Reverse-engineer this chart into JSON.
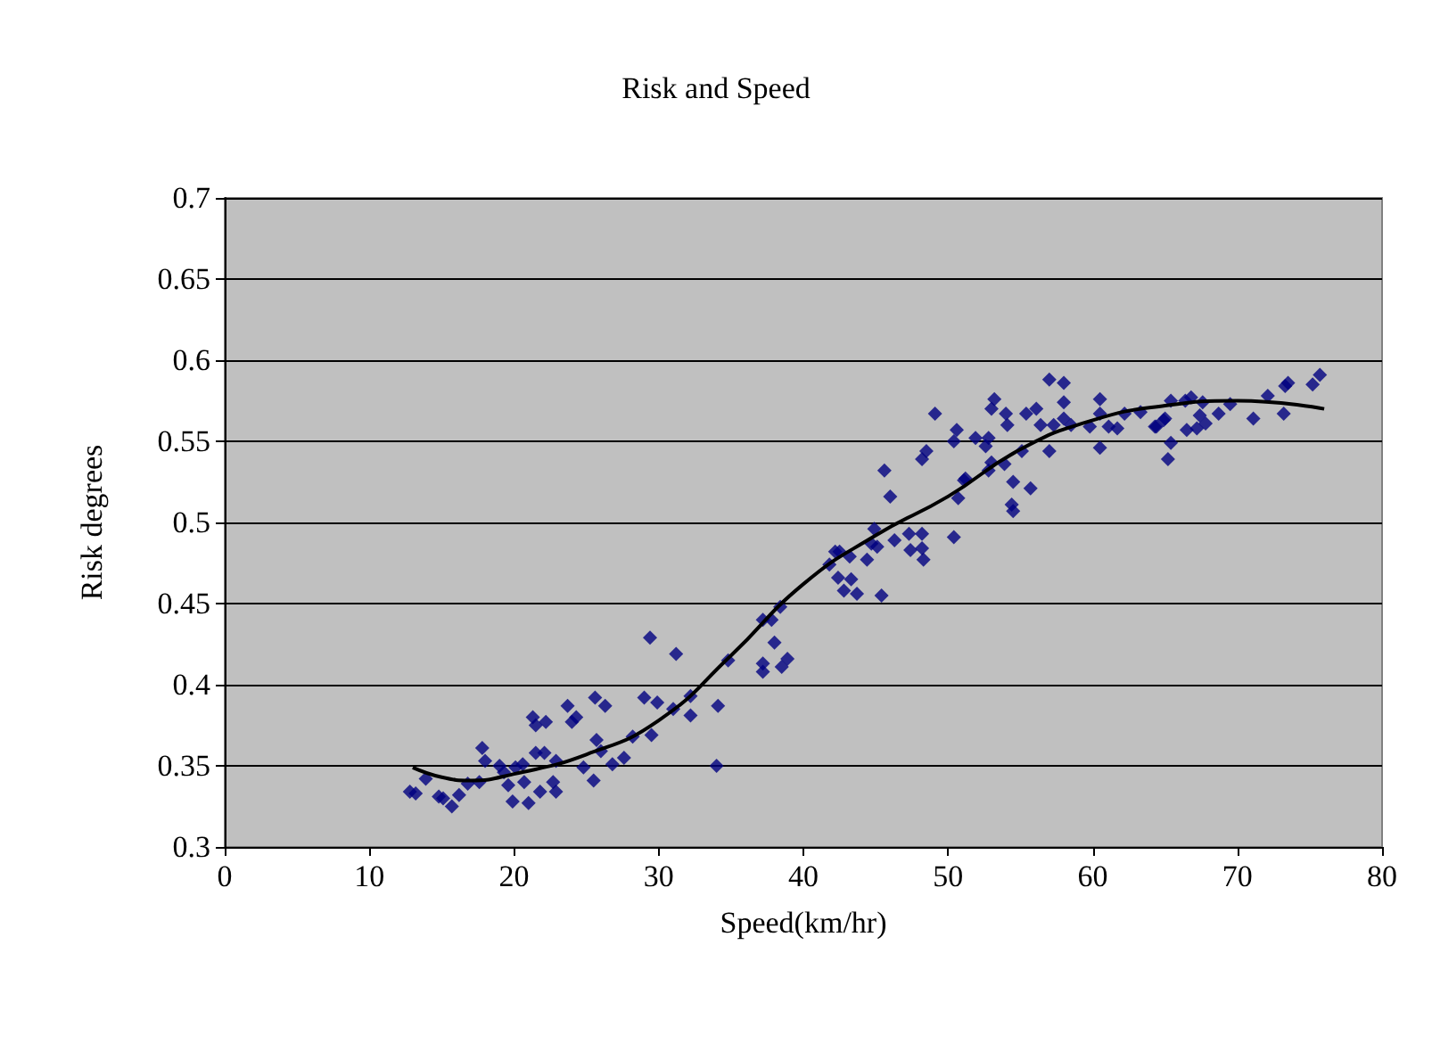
{
  "chart_data": {
    "type": "scatter",
    "title": "Risk and Speed",
    "xlabel": "Speed(km/hr)",
    "ylabel": "Risk degrees",
    "xlim": [
      0,
      80
    ],
    "xticks": [
      0,
      10,
      20,
      30,
      40,
      50,
      60,
      70,
      80
    ],
    "ylim": [
      0.3,
      0.7
    ],
    "yticks": [
      0.3,
      0.35,
      0.4,
      0.45,
      0.5,
      0.55,
      0.6,
      0.65,
      0.7
    ],
    "grid": "y",
    "marker": "diamond",
    "series": [
      {
        "color": "#000080",
        "x": [
          12.8,
          13.2,
          13.9,
          14.8,
          15.1,
          15.7,
          16.2,
          16.8,
          17.6,
          17.8,
          18.0,
          19.0,
          19.3,
          19.6,
          19.9,
          20.1,
          20.6,
          20.7,
          21.0,
          21.3,
          21.5,
          22.2,
          21.5,
          22.1,
          21.8,
          22.7,
          22.9,
          22.9,
          23.7,
          24.0,
          24.3,
          24.8,
          25.5,
          25.6,
          25.7,
          26.0,
          26.3,
          26.8,
          27.6,
          28.2,
          29.4,
          31.2,
          29.0,
          29.9,
          29.5,
          31.0,
          32.2,
          32.2,
          34.1,
          34.0,
          34.8,
          37.2,
          37.2,
          38.0,
          38.9,
          38.5,
          37.2,
          37.8,
          38.4,
          41.8,
          42.2,
          42.5,
          42.4,
          43.3,
          42.8,
          43.7,
          43.2,
          44.4,
          44.9,
          44.7,
          45.1,
          45.4,
          46.3,
          47.3,
          47.4,
          48.2,
          48.2,
          48.3,
          50.4,
          45.6,
          46.0,
          50.7,
          51.1,
          48.2,
          48.5,
          50.4,
          57.0,
          58.0,
          53.2,
          53.0,
          49.1,
          54.0,
          54.1,
          55.4,
          56.1,
          56.4,
          57.3,
          58.0,
          58.0,
          58.5,
          59.8,
          60.5,
          60.5,
          61.1,
          61.7,
          60.5,
          62.2,
          63.3,
          64.3,
          65.0,
          65.4,
          65.4,
          65.2,
          50.6,
          51.9,
          52.6,
          52.8,
          51.2,
          53.0,
          52.8,
          53.9,
          55.1,
          57.0,
          54.5,
          55.7,
          54.4,
          54.5,
          66.8,
          66.4,
          67.6,
          67.4,
          68.7,
          69.5,
          67.8,
          67.2,
          66.5,
          64.4,
          64.9,
          71.1,
          72.1,
          73.2,
          73.3,
          73.5,
          75.2,
          75.7
        ],
        "values": [
          0.334,
          0.333,
          0.342,
          0.331,
          0.33,
          0.325,
          0.332,
          0.339,
          0.34,
          0.361,
          0.353,
          0.35,
          0.346,
          0.338,
          0.328,
          0.349,
          0.351,
          0.34,
          0.327,
          0.38,
          0.375,
          0.377,
          0.358,
          0.358,
          0.334,
          0.34,
          0.334,
          0.353,
          0.387,
          0.377,
          0.38,
          0.349,
          0.341,
          0.392,
          0.366,
          0.359,
          0.387,
          0.351,
          0.355,
          0.368,
          0.429,
          0.419,
          0.392,
          0.389,
          0.369,
          0.385,
          0.393,
          0.381,
          0.387,
          0.35,
          0.415,
          0.413,
          0.408,
          0.426,
          0.416,
          0.411,
          0.44,
          0.44,
          0.448,
          0.474,
          0.482,
          0.482,
          0.466,
          0.465,
          0.458,
          0.456,
          0.479,
          0.477,
          0.496,
          0.487,
          0.485,
          0.455,
          0.489,
          0.493,
          0.483,
          0.493,
          0.484,
          0.477,
          0.491,
          0.532,
          0.516,
          0.515,
          0.526,
          0.539,
          0.544,
          0.55,
          0.588,
          0.586,
          0.576,
          0.57,
          0.567,
          0.567,
          0.56,
          0.567,
          0.57,
          0.56,
          0.56,
          0.574,
          0.564,
          0.56,
          0.559,
          0.576,
          0.567,
          0.559,
          0.558,
          0.546,
          0.567,
          0.568,
          0.559,
          0.564,
          0.575,
          0.549,
          0.539,
          0.557,
          0.552,
          0.547,
          0.552,
          0.527,
          0.537,
          0.532,
          0.536,
          0.544,
          0.544,
          0.525,
          0.521,
          0.511,
          0.507,
          0.577,
          0.575,
          0.574,
          0.566,
          0.567,
          0.573,
          0.561,
          0.558,
          0.557,
          0.559,
          0.563,
          0.564,
          0.578,
          0.567,
          0.584,
          0.586,
          0.585,
          0.591
        ]
      },
      {
        "type": "line",
        "color": "#000000",
        "marker": "none",
        "x": [
          13,
          15,
          17,
          20,
          25,
          30,
          35,
          40,
          45,
          50,
          55,
          60,
          65,
          70,
          76
        ],
        "values": [
          0.349,
          0.343,
          0.341,
          0.345,
          0.357,
          0.378,
          0.418,
          0.462,
          0.492,
          0.516,
          0.545,
          0.563,
          0.572,
          0.575,
          0.57
        ]
      }
    ]
  }
}
